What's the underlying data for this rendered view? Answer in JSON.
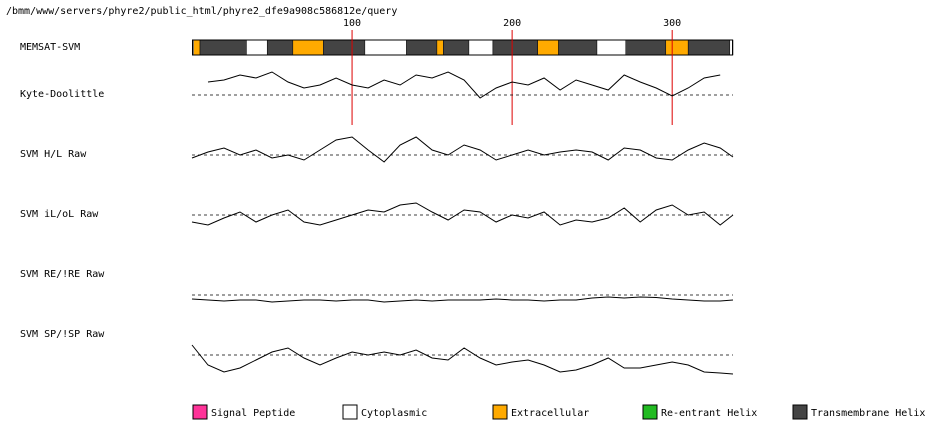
{
  "chart_data": {
    "type": "memsat",
    "title": "/bmm/www/servers/phyre2/public_html/phyre2_dfe9a908c586812e/query",
    "xlim": [
      0,
      338
    ],
    "xticks": [
      100,
      200,
      300
    ],
    "ylim": [
      -1,
      1
    ],
    "classes": [
      {
        "name": "Signal Peptide",
        "color": "#ff3399"
      },
      {
        "name": "Cytoplasmic",
        "color": "#ffffff"
      },
      {
        "name": "Extracellular",
        "color": "#ffaa00"
      },
      {
        "name": "Re-entrant Helix",
        "color": "#22bb22"
      },
      {
        "name": "Transmembrane Helix",
        "color": "#444444"
      }
    ],
    "topology": {
      "name": "MEMSAT-SVM",
      "segments": [
        {
          "start": 1,
          "end": 5,
          "class": 2
        },
        {
          "start": 5,
          "end": 34,
          "class": 4
        },
        {
          "start": 34,
          "end": 47,
          "class": 1
        },
        {
          "start": 47,
          "end": 63,
          "class": 4
        },
        {
          "start": 63,
          "end": 82,
          "class": 2
        },
        {
          "start": 82,
          "end": 108,
          "class": 4
        },
        {
          "start": 108,
          "end": 134,
          "class": 1
        },
        {
          "start": 134,
          "end": 153,
          "class": 4
        },
        {
          "start": 153,
          "end": 157,
          "class": 2
        },
        {
          "start": 157,
          "end": 173,
          "class": 4
        },
        {
          "start": 173,
          "end": 188,
          "class": 1
        },
        {
          "start": 188,
          "end": 216,
          "class": 4
        },
        {
          "start": 216,
          "end": 229,
          "class": 2
        },
        {
          "start": 229,
          "end": 253,
          "class": 4
        },
        {
          "start": 253,
          "end": 271,
          "class": 1
        },
        {
          "start": 271,
          "end": 296,
          "class": 4
        },
        {
          "start": 296,
          "end": 310,
          "class": 2
        },
        {
          "start": 310,
          "end": 336,
          "class": 4
        },
        {
          "start": 336,
          "end": 338,
          "class": 1
        }
      ]
    },
    "x": [
      0,
      10,
      20,
      30,
      40,
      50,
      60,
      70,
      80,
      90,
      100,
      110,
      120,
      130,
      140,
      150,
      160,
      170,
      180,
      190,
      200,
      210,
      220,
      230,
      240,
      250,
      260,
      270,
      280,
      290,
      300,
      310,
      320,
      330,
      338
    ],
    "series": [
      {
        "name": "Kyte-Doolittle",
        "color": "#000000",
        "values": [
          null,
          0.52,
          0.6,
          0.8,
          0.68,
          0.92,
          0.52,
          0.28,
          0.4,
          0.68,
          0.4,
          0.28,
          0.6,
          0.4,
          0.8,
          0.68,
          0.92,
          0.6,
          -0.12,
          0.28,
          0.52,
          0.4,
          0.68,
          0.2,
          0.6,
          0.4,
          0.2,
          0.8,
          0.52,
          0.28,
          -0.04,
          0.28,
          0.68,
          0.8,
          null
        ]
      },
      {
        "name": "SVM H/L Raw",
        "color": "#000000",
        "values": [
          -0.12,
          0.12,
          0.28,
          0,
          0.2,
          -0.12,
          0,
          -0.2,
          0.2,
          0.6,
          0.72,
          0.2,
          -0.28,
          0.4,
          0.72,
          0.2,
          0,
          0.4,
          0.2,
          -0.2,
          0,
          0.2,
          0,
          0.12,
          0.2,
          0.12,
          -0.2,
          0.28,
          0.2,
          -0.12,
          -0.2,
          0.2,
          0.48,
          0.28,
          -0.08
        ]
      },
      {
        "name": "SVM iL/oL Raw",
        "color": "#000000",
        "values": [
          -0.28,
          -0.4,
          -0.12,
          0.12,
          -0.28,
          0,
          0.2,
          -0.28,
          -0.4,
          -0.2,
          0,
          0.2,
          0.12,
          0.4,
          0.48,
          0.12,
          -0.2,
          0.2,
          0.12,
          -0.28,
          0,
          -0.12,
          0.12,
          -0.4,
          -0.2,
          -0.28,
          -0.12,
          0.28,
          -0.28,
          0.2,
          0.4,
          0,
          0.12,
          -0.4,
          0
        ]
      },
      {
        "name": "SVM RE/!RE Raw",
        "color": "#000000",
        "values": [
          -0.16,
          -0.2,
          -0.24,
          -0.2,
          -0.2,
          -0.28,
          -0.24,
          -0.2,
          -0.2,
          -0.24,
          -0.2,
          -0.2,
          -0.28,
          -0.24,
          -0.2,
          -0.24,
          -0.2,
          -0.2,
          -0.2,
          -0.16,
          -0.2,
          -0.2,
          -0.24,
          -0.2,
          -0.2,
          -0.12,
          -0.08,
          -0.12,
          -0.08,
          -0.1,
          -0.16,
          -0.2,
          -0.24,
          -0.24,
          -0.2
        ]
      },
      {
        "name": "SVM SP/!SP Raw",
        "color": "#000000",
        "values": [
          0.4,
          -0.4,
          -0.68,
          -0.52,
          -0.2,
          0.12,
          0.28,
          -0.12,
          -0.4,
          -0.12,
          0.12,
          0,
          0.12,
          0,
          0.2,
          -0.12,
          -0.2,
          0.28,
          -0.12,
          -0.4,
          -0.28,
          -0.2,
          -0.4,
          -0.68,
          -0.6,
          -0.4,
          -0.12,
          -0.52,
          -0.52,
          -0.4,
          -0.28,
          -0.4,
          -0.68,
          -0.72,
          -0.76
        ]
      }
    ]
  }
}
